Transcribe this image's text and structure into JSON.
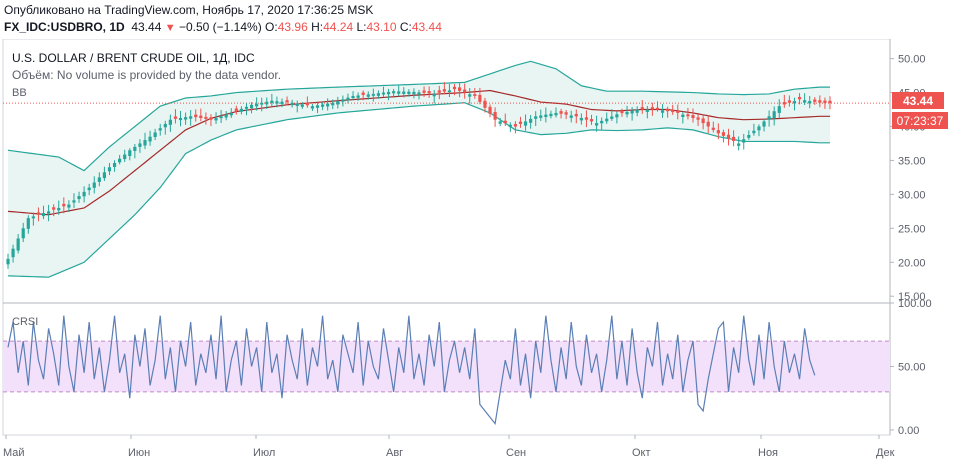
{
  "header": {
    "published": "Опубликовано на TradingView.com, Ноябрь 17, 2020 17:36:25 MSK",
    "symbol": "FX_IDC:USDBRO, 1D",
    "last": "43.44",
    "down_mark": "▼",
    "change": "−0.50 (−1.14%)",
    "open_label": "O:",
    "open": "43.96",
    "high_label": "H:",
    "high": "44.24",
    "low_label": "L:",
    "low": "43.10",
    "close_label": "C:",
    "close": "43.44"
  },
  "legend": {
    "title": "U.S. DOLLAR / BRENT CRUDE OIL, 1Д, IDC",
    "volume": "Объём: No volume is provided by the data vendor.",
    "bb": "BB",
    "crsi": "CRSI"
  },
  "badges": {
    "price": "43.44",
    "timer": "07:23:37"
  },
  "colors": {
    "up": "#26a69a",
    "down": "#ef5350",
    "band": "#26a69a",
    "band_fill": "#e8f5f3",
    "basis": "#a52a2a",
    "crsi_line": "#5b7fb5",
    "crsi_fill": "#f3e1fb",
    "crsi_dash": "#c08ac7"
  },
  "chart_data": [
    {
      "type": "candlestick",
      "title": "U.S. DOLLAR / BRENT CRUDE OIL, 1Д, IDC",
      "y_ticks": [
        "50.00",
        "45.00",
        "40.00",
        "35.00",
        "30.00",
        "25.00",
        "20.00",
        "15.00"
      ],
      "ylim": [
        14,
        52.3
      ],
      "x_labels": [
        "Май",
        "Июн",
        "Июл",
        "Авг",
        "Сен",
        "Окт",
        "Ноя",
        "Дек"
      ],
      "last_price": 43.44,
      "ohlc_anchors": [
        [
          0,
          20.5
        ],
        [
          4,
          26.5
        ],
        [
          8,
          27.5
        ],
        [
          12,
          28.5
        ],
        [
          16,
          31
        ],
        [
          20,
          34
        ],
        [
          24,
          36.5
        ],
        [
          28,
          38.5
        ],
        [
          32,
          41
        ],
        [
          36,
          41.5
        ],
        [
          40,
          41
        ],
        [
          44,
          42
        ],
        [
          48,
          43.2
        ],
        [
          52,
          43.8
        ],
        [
          56,
          43.5
        ],
        [
          60,
          43
        ],
        [
          64,
          43.5
        ],
        [
          68,
          44.5
        ],
        [
          72,
          44.8
        ],
        [
          76,
          45.2
        ],
        [
          80,
          45.1
        ],
        [
          84,
          44.8
        ],
        [
          88,
          45.5
        ],
        [
          92,
          44.5
        ],
        [
          96,
          41
        ],
        [
          100,
          40
        ],
        [
          104,
          41.5
        ],
        [
          108,
          42
        ],
        [
          112,
          41.5
        ],
        [
          116,
          40.5
        ],
        [
          120,
          41.8
        ],
        [
          124,
          42.5
        ],
        [
          128,
          42.5
        ],
        [
          132,
          42
        ],
        [
          136,
          41
        ],
        [
          140,
          39
        ],
        [
          144,
          37.5
        ],
        [
          148,
          40
        ],
        [
          152,
          43
        ],
        [
          156,
          44
        ],
        [
          160,
          43.5
        ],
        [
          162,
          43.44
        ]
      ],
      "bb_upper_anchors": [
        [
          0,
          36.5
        ],
        [
          10,
          35.5
        ],
        [
          15,
          33.5
        ],
        [
          20,
          37
        ],
        [
          25,
          40
        ],
        [
          30,
          43
        ],
        [
          35,
          44.2
        ],
        [
          40,
          44.5
        ],
        [
          45,
          45
        ],
        [
          55,
          45.5
        ],
        [
          65,
          45.8
        ],
        [
          80,
          46.2
        ],
        [
          90,
          46.5
        ],
        [
          100,
          49
        ],
        [
          103,
          49.6
        ],
        [
          108,
          48.5
        ],
        [
          113,
          46
        ],
        [
          118,
          45.2
        ],
        [
          125,
          45.2
        ],
        [
          135,
          45
        ],
        [
          140,
          44.8
        ],
        [
          145,
          44.7
        ],
        [
          150,
          44.8
        ],
        [
          155,
          45.5
        ],
        [
          160,
          45.8
        ]
      ],
      "bb_lower_anchors": [
        [
          0,
          18
        ],
        [
          8,
          17.8
        ],
        [
          15,
          20
        ],
        [
          20,
          23.5
        ],
        [
          25,
          27
        ],
        [
          30,
          31
        ],
        [
          35,
          36
        ],
        [
          40,
          38
        ],
        [
          45,
          39.5
        ],
        [
          55,
          41
        ],
        [
          65,
          42
        ],
        [
          80,
          43
        ],
        [
          90,
          43.5
        ],
        [
          95,
          42
        ],
        [
          100,
          39.5
        ],
        [
          105,
          38.8
        ],
        [
          110,
          39
        ],
        [
          115,
          39.5
        ],
        [
          120,
          39.4
        ],
        [
          125,
          39.5
        ],
        [
          130,
          39.8
        ],
        [
          135,
          39.5
        ],
        [
          140,
          38.5
        ],
        [
          145,
          37.8
        ],
        [
          150,
          37.8
        ],
        [
          155,
          37.8
        ],
        [
          160,
          37.6
        ]
      ],
      "bb_basis_anchors": [
        [
          0,
          27.5
        ],
        [
          8,
          27
        ],
        [
          15,
          28
        ],
        [
          20,
          30.5
        ],
        [
          25,
          33.5
        ],
        [
          30,
          36.5
        ],
        [
          35,
          39.5
        ],
        [
          40,
          41.2
        ],
        [
          45,
          42.2
        ],
        [
          55,
          43.2
        ],
        [
          65,
          43.8
        ],
        [
          80,
          44.6
        ],
        [
          90,
          45
        ],
        [
          95,
          45.3
        ],
        [
          100,
          44.5
        ],
        [
          105,
          43.6
        ],
        [
          110,
          43.3
        ],
        [
          115,
          42.5
        ],
        [
          120,
          42.3
        ],
        [
          125,
          42.5
        ],
        [
          130,
          42.5
        ],
        [
          135,
          42
        ],
        [
          140,
          41.3
        ],
        [
          145,
          41
        ],
        [
          150,
          41.1
        ],
        [
          155,
          41.3
        ],
        [
          160,
          41.5
        ]
      ]
    },
    {
      "type": "line",
      "title": "CRSI",
      "y_ticks": [
        "100.00",
        "50.00",
        "0.00"
      ],
      "ylim": [
        -4,
        100
      ],
      "upper_band": 70,
      "lower_band": 30,
      "values": [
        65,
        85,
        45,
        70,
        35,
        85,
        55,
        40,
        80,
        60,
        35,
        90,
        50,
        30,
        75,
        45,
        85,
        40,
        65,
        30,
        55,
        90,
        45,
        60,
        25,
        75,
        50,
        80,
        35,
        55,
        90,
        40,
        65,
        30,
        70,
        50,
        85,
        35,
        60,
        45,
        75,
        40,
        90,
        30,
        55,
        70,
        35,
        80,
        50,
        65,
        30,
        85,
        45,
        60,
        25,
        75,
        55,
        40,
        80,
        35,
        65,
        50,
        90,
        40,
        55,
        30,
        75,
        60,
        45,
        85,
        35,
        70,
        50,
        40,
        80,
        55,
        30,
        65,
        45,
        90,
        40,
        60,
        35,
        75,
        50,
        85,
        30,
        55,
        70,
        45,
        65,
        40,
        80,
        20,
        15,
        10,
        5,
        30,
        55,
        40,
        80,
        35,
        60,
        25,
        70,
        45,
        90,
        55,
        30,
        65,
        40,
        85,
        50,
        35,
        75,
        45,
        60,
        30,
        55,
        90,
        40,
        70,
        35,
        80,
        45,
        25,
        65,
        50,
        85,
        35,
        60,
        40,
        75,
        30,
        55,
        70,
        20,
        15,
        40,
        60,
        80,
        85,
        30,
        65,
        45,
        90,
        55,
        35,
        75,
        40,
        85,
        50,
        30,
        70,
        45,
        60,
        40,
        80,
        55,
        43
      ]
    }
  ]
}
